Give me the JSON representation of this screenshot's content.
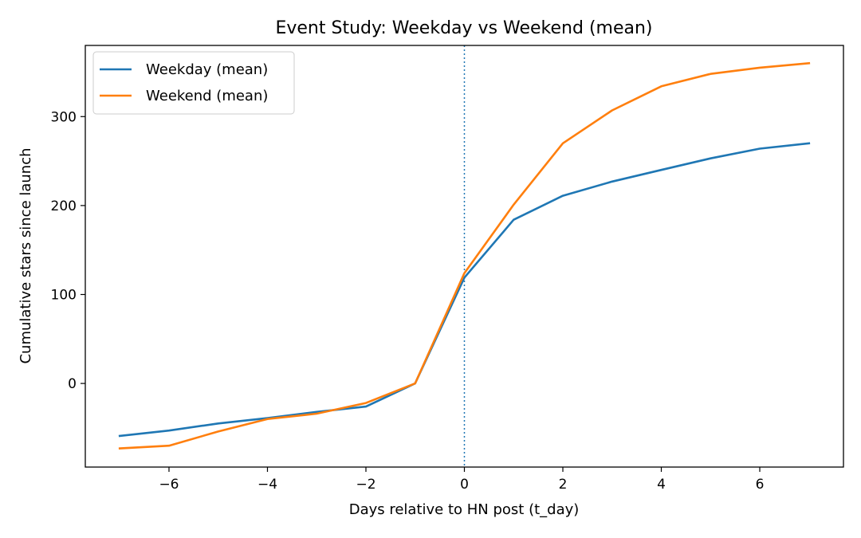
{
  "chart_data": {
    "type": "line",
    "title": "Event Study: Weekday vs Weekend (mean)",
    "xlabel": "Days relative to HN post (t_day)",
    "ylabel": "Cumulative stars since launch",
    "x": [
      -7,
      -6,
      -5,
      -4,
      -3,
      -2,
      -1,
      0,
      1,
      2,
      3,
      4,
      5,
      6,
      7
    ],
    "xlim": [
      -7.7,
      7.7
    ],
    "ylim": [
      -94,
      380
    ],
    "xticks": [
      -6,
      -4,
      -2,
      0,
      2,
      4,
      6
    ],
    "xtick_labels": [
      "−6",
      "−4",
      "−2",
      "0",
      "2",
      "4",
      "6"
    ],
    "yticks": [
      0,
      100,
      200,
      300
    ],
    "ytick_labels": [
      "0",
      "100",
      "200",
      "300"
    ],
    "grid": false,
    "legend_position": "upper-left",
    "vline": {
      "x": 0,
      "style": "dotted",
      "color": "#1f77b4"
    },
    "series": [
      {
        "name": "Weekday (mean)",
        "color": "#1f77b4",
        "values": [
          -59,
          -53,
          -45,
          -39,
          -32,
          -26,
          0,
          119,
          184,
          211,
          227,
          240,
          253,
          264,
          270
        ]
      },
      {
        "name": "Weekend (mean)",
        "color": "#ff7f0e",
        "values": [
          -73,
          -70,
          -54,
          -40,
          -34,
          -22,
          0,
          124,
          201,
          270,
          307,
          334,
          348,
          355,
          360
        ]
      }
    ]
  }
}
